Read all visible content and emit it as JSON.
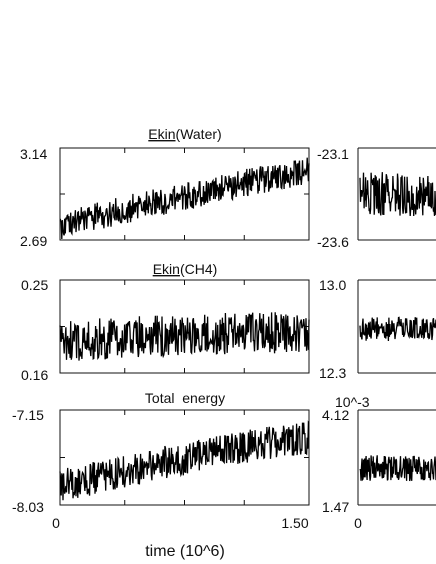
{
  "chart_data": {
    "type": "line",
    "xlabel": "time (10^6)",
    "x_range": [
      0,
      1.5
    ],
    "x_tick_labels": [
      "0",
      "1.50"
    ],
    "panels": [
      {
        "title_underlined": "Ekin",
        "title_rest": "(Water)",
        "y_top_label": "3.14",
        "y_bottom_label": "2.69",
        "ylim": [
          2.69,
          3.14
        ],
        "series": [
          {
            "x": [
              0,
              0.25,
              0.5,
              0.75,
              1.0,
              1.25,
              1.5
            ],
            "y": [
              2.76,
              2.81,
              2.86,
              2.9,
              2.95,
              2.99,
              3.03
            ]
          }
        ]
      },
      {
        "title_underlined": "Ekin",
        "title_rest": "(CH4)",
        "y_top_label": "0.25",
        "y_bottom_label": "0.16",
        "ylim": [
          0.16,
          0.25
        ],
        "series": [
          {
            "x": [
              0,
              0.25,
              0.5,
              0.75,
              1.0,
              1.25,
              1.5
            ],
            "y": [
              0.191,
              0.193,
              0.195,
              0.197,
              0.198,
              0.199,
              0.2
            ]
          }
        ]
      },
      {
        "title": "Total  energy",
        "y_top_label": "-7.15",
        "y_bottom_label": "-8.03",
        "ylim": [
          -8.03,
          -7.15
        ],
        "series": [
          {
            "x": [
              0,
              0.25,
              0.5,
              0.75,
              1.0,
              1.25,
              1.5
            ],
            "y": [
              -7.85,
              -7.77,
              -7.68,
              -7.6,
              -7.52,
              -7.46,
              -7.41
            ]
          }
        ]
      }
    ],
    "right_panels": [
      {
        "y_top_label": "-23.1",
        "y_bottom_label": "-23.6",
        "ylim": [
          -23.6,
          -23.1
        ],
        "level": -23.35
      },
      {
        "y_top_label": "13.0",
        "y_bottom_label": "12.3",
        "ylim": [
          12.3,
          13.0
        ],
        "level": 12.63
      },
      {
        "y_top_label": "4.12",
        "y_bottom_label": "1.47",
        "ylim": [
          1.47,
          4.12
        ],
        "level": 2.5,
        "exponent_label": "10^-3",
        "x_tick_label": "0"
      }
    ]
  }
}
